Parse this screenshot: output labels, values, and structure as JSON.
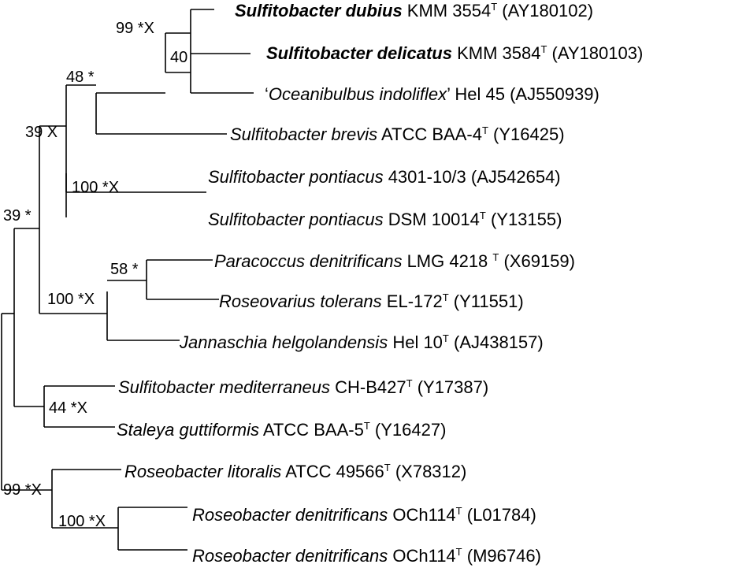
{
  "taxa": [
    {
      "genus": "Sulfitobacter",
      "species": "dubius",
      "strain": "KMM 3554",
      "type_strain": true,
      "accession": "(AY180102)",
      "bold": true
    },
    {
      "genus": "Sulfitobacter",
      "species": "delicatus",
      "strain": "KMM 3584",
      "type_strain": true,
      "accession": "(AY180103)",
      "bold": true
    },
    {
      "prefix": "‘",
      "genus": "Oceanibulbus",
      "species": "indoliflex",
      "suffix": "’",
      "strain": "Hel 45",
      "type_strain": false,
      "accession": "(AJ550939)",
      "bold": false
    },
    {
      "genus": "Sulfitobacter",
      "species": "brevis",
      "strain": "ATCC BAA-4",
      "type_strain": true,
      "accession": "(Y16425)",
      "bold": false
    },
    {
      "genus": "Sulfitobacter",
      "species": "pontiacus",
      "strain": "4301-10/3",
      "type_strain": false,
      "accession": "(AJ542654)",
      "bold": false
    },
    {
      "genus": "Sulfitobacter",
      "species": "pontiacus",
      "strain": "DSM 10014",
      "type_strain": true,
      "accession": "(Y13155)",
      "bold": false
    },
    {
      "genus": "Paracoccus",
      "species": "denitrificans",
      "strain": "LMG 4218 ",
      "type_strain": true,
      "accession": "(X69159)",
      "bold": false
    },
    {
      "genus": "Roseovarius",
      "species": "tolerans",
      "strain": "EL-172",
      "type_strain": true,
      "accession": "(Y11551)",
      "bold": false
    },
    {
      "genus": "Jannaschia",
      "species": "helgolandensis",
      "strain": "Hel 10",
      "type_strain": true,
      "accession": "(AJ438157)",
      "bold": false
    },
    {
      "genus": "Sulfitobacter",
      "species": "mediterraneus",
      "strain": "CH-B427",
      "type_strain": true,
      "accession": "(Y17387)",
      "bold": false
    },
    {
      "genus": "Staleya",
      "species": "guttiformis",
      "strain": "ATCC BAA-5",
      "type_strain": true,
      "accession": "(Y16427)",
      "bold": false
    },
    {
      "genus": "Roseobacter",
      "species": "litoralis",
      "strain": "ATCC 49566",
      "type_strain": true,
      "accession": "(X78312)",
      "bold": false
    },
    {
      "genus": "Roseobacter",
      "species": "denitrificans",
      "strain": "OCh114",
      "type_strain": true,
      "accession": "(L01784)",
      "bold": false
    },
    {
      "genus": "Roseobacter",
      "species": "denitrificans",
      "strain": "OCh114",
      "type_strain": true,
      "accession": "(M96746)",
      "bold": false
    }
  ],
  "type_strain_mark": "T",
  "bootstrap": [
    {
      "node": "dubius-delicatus-clade",
      "text": "99 *X"
    },
    {
      "node": "delicatus-oceanibulbus-clade",
      "text": "40"
    },
    {
      "node": "brevis-clade",
      "text": "48 *"
    },
    {
      "node": "upper-sulfitobacter-clade",
      "text": "39 X"
    },
    {
      "node": "pontiacus-clade",
      "text": "100 *X"
    },
    {
      "node": "upper-main-clade",
      "text": "39 *"
    },
    {
      "node": "paracoccus-roseovarius-clade",
      "text": "58 *"
    },
    {
      "node": "jannaschia-clade",
      "text": "100 *X"
    },
    {
      "node": "mediterraneus-staleya-clade",
      "text": "44 *X"
    },
    {
      "node": "roseobacter-clade",
      "text": "99 *X"
    },
    {
      "node": "roseobacter-denitrificans-clade",
      "text": "100 *X"
    }
  ]
}
